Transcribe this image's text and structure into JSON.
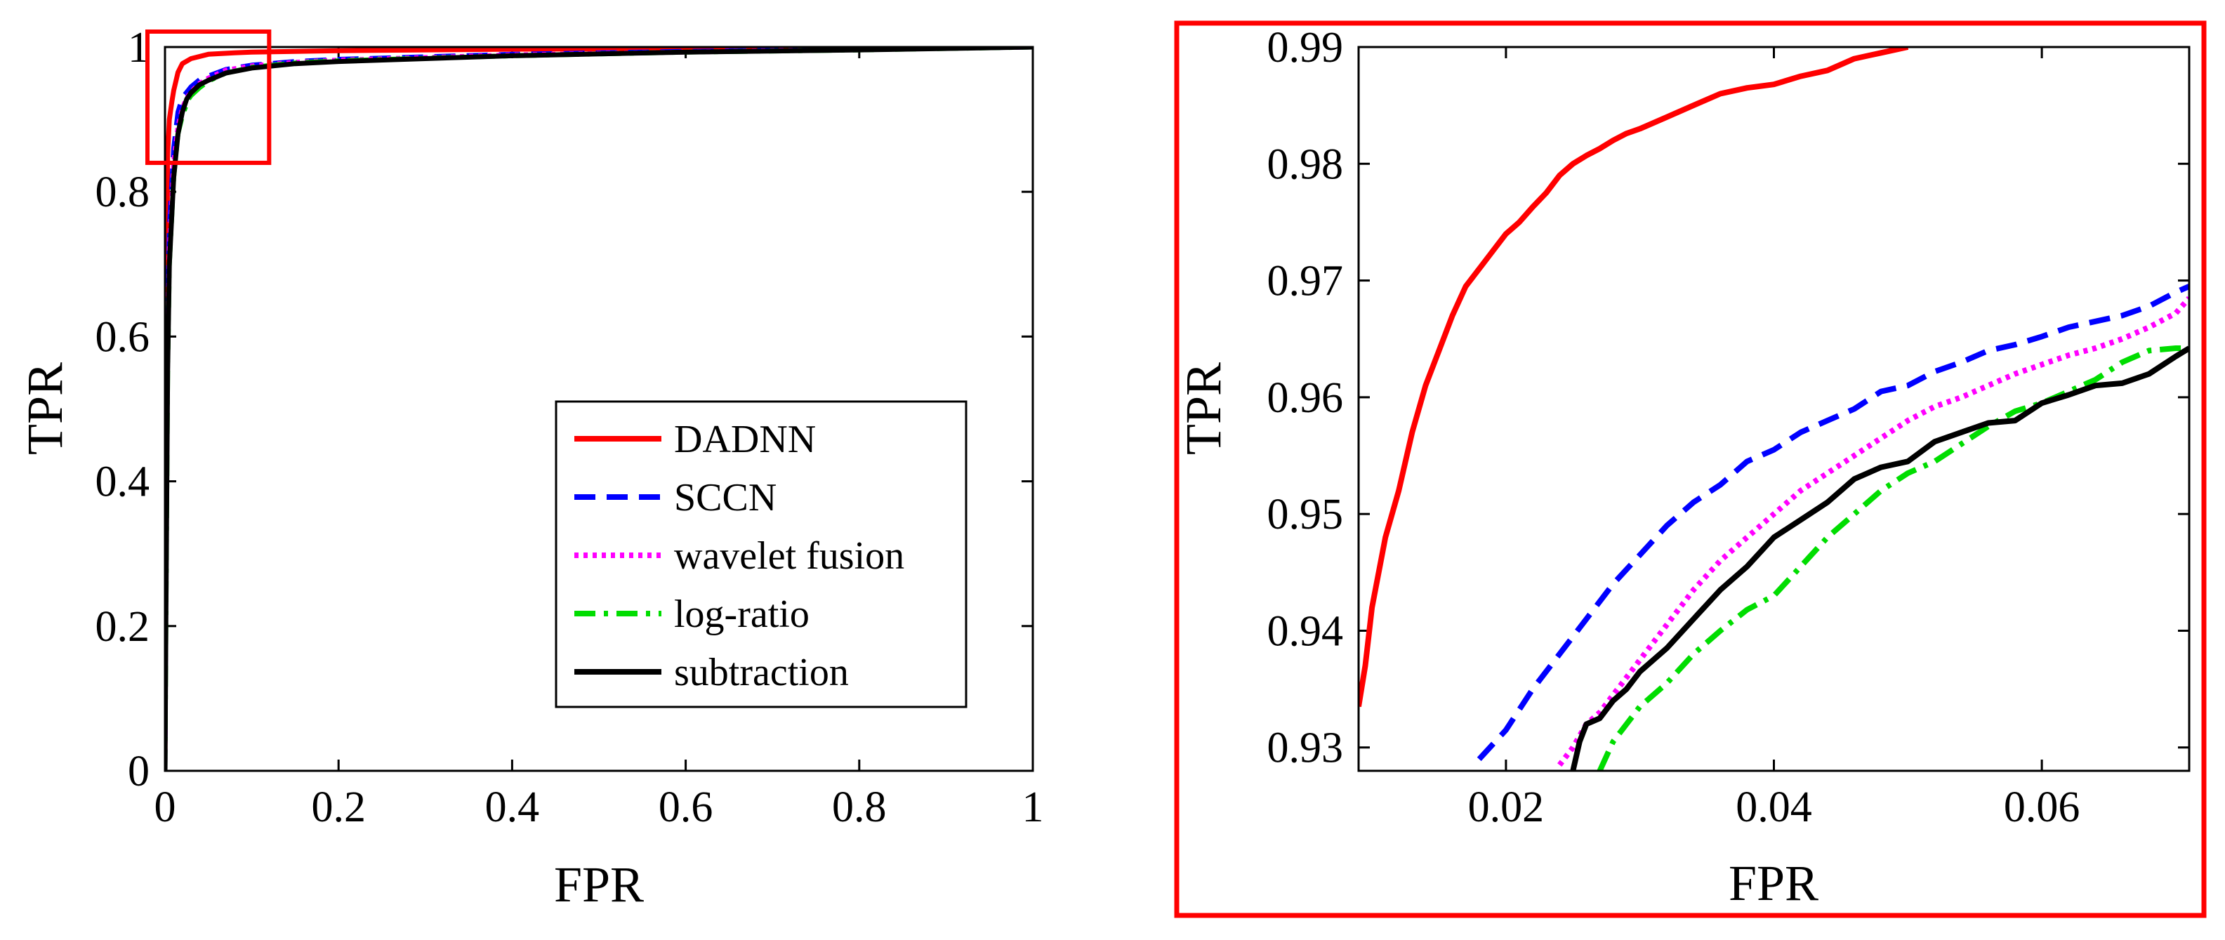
{
  "chart_data": [
    {
      "panel": "full-roc",
      "type": "line",
      "xlabel": "FPR",
      "ylabel": "TPR",
      "xlim": [
        0,
        1
      ],
      "ylim": [
        0,
        1
      ],
      "xticks": [
        0,
        0.2,
        0.4,
        0.6,
        0.8,
        1
      ],
      "xtick_labels": [
        "0",
        "0.2",
        "0.4",
        "0.6",
        "0.8",
        "1"
      ],
      "yticks": [
        0,
        0.2,
        0.4,
        0.6,
        0.8,
        1
      ],
      "ytick_labels": [
        "0",
        "0.2",
        "0.4",
        "0.6",
        "0.8",
        "1"
      ],
      "legend_position": "lower-right",
      "zoom_box": {
        "x_range": [
          0,
          0.12
        ],
        "y_range": [
          0.84,
          1.0
        ]
      },
      "series": [
        {
          "name": "DADNN",
          "color": "#ff0000",
          "dash": "solid",
          "x": [
            0,
            0.001,
            0.003,
            0.005,
            0.008,
            0.01,
            0.015,
            0.02,
            0.03,
            0.05,
            0.08,
            0.1,
            0.2,
            0.4,
            0.6,
            0.8,
            1
          ],
          "y": [
            0,
            0.4,
            0.85,
            0.9,
            0.925,
            0.94,
            0.965,
            0.977,
            0.984,
            0.99,
            0.992,
            0.993,
            0.995,
            0.997,
            0.998,
            0.999,
            1
          ]
        },
        {
          "name": "SCCN",
          "color": "#0000ff",
          "dash": "dashed",
          "x": [
            0,
            0.001,
            0.003,
            0.005,
            0.01,
            0.015,
            0.02,
            0.03,
            0.04,
            0.05,
            0.07,
            0.1,
            0.15,
            0.2,
            0.4,
            0.6,
            0.8,
            1
          ],
          "y": [
            0,
            0.3,
            0.62,
            0.75,
            0.86,
            0.91,
            0.93,
            0.945,
            0.955,
            0.96,
            0.969,
            0.975,
            0.98,
            0.983,
            0.99,
            0.994,
            0.997,
            1
          ]
        },
        {
          "name": "wavelet fusion",
          "color": "#ff00ff",
          "dash": "dotted",
          "x": [
            0,
            0.001,
            0.003,
            0.005,
            0.01,
            0.015,
            0.02,
            0.025,
            0.03,
            0.04,
            0.05,
            0.07,
            0.1,
            0.15,
            0.2,
            0.4,
            0.6,
            0.8,
            1
          ],
          "y": [
            0,
            0.25,
            0.58,
            0.72,
            0.84,
            0.89,
            0.915,
            0.93,
            0.938,
            0.95,
            0.957,
            0.968,
            0.974,
            0.979,
            0.982,
            0.989,
            0.993,
            0.997,
            1
          ]
        },
        {
          "name": "log-ratio",
          "color": "#00dd00",
          "dash": "dashdot",
          "x": [
            0,
            0.001,
            0.003,
            0.005,
            0.01,
            0.015,
            0.02,
            0.027,
            0.03,
            0.04,
            0.05,
            0.07,
            0.1,
            0.15,
            0.2,
            0.4,
            0.6,
            0.8,
            1
          ],
          "y": [
            0,
            0.2,
            0.55,
            0.7,
            0.82,
            0.88,
            0.905,
            0.928,
            0.933,
            0.944,
            0.953,
            0.964,
            0.972,
            0.978,
            0.981,
            0.988,
            0.993,
            0.996,
            1
          ]
        },
        {
          "name": "subtraction",
          "color": "#000000",
          "dash": "solid",
          "x": [
            0,
            0.001,
            0.003,
            0.005,
            0.01,
            0.015,
            0.02,
            0.025,
            0.03,
            0.04,
            0.05,
            0.07,
            0.1,
            0.15,
            0.2,
            0.4,
            0.6,
            0.8,
            1
          ],
          "y": [
            0,
            0.2,
            0.55,
            0.7,
            0.82,
            0.88,
            0.91,
            0.928,
            0.937,
            0.948,
            0.954,
            0.964,
            0.971,
            0.977,
            0.98,
            0.988,
            0.993,
            0.996,
            1
          ]
        }
      ]
    },
    {
      "panel": "zoomed-roc",
      "type": "line",
      "xlabel": "FPR",
      "ylabel": "TPR",
      "xlim": [
        0.009,
        0.071
      ],
      "ylim": [
        0.928,
        0.99
      ],
      "xticks": [
        0.02,
        0.04,
        0.06
      ],
      "xtick_labels": [
        "0.02",
        "0.04",
        "0.06"
      ],
      "yticks": [
        0.93,
        0.94,
        0.95,
        0.96,
        0.97,
        0.98,
        0.99
      ],
      "ytick_labels": [
        "0.93",
        "0.94",
        "0.95",
        "0.96",
        "0.97",
        "0.98",
        "0.99"
      ],
      "series": [
        {
          "name": "DADNN",
          "color": "#ff0000",
          "dash": "solid",
          "x": [
            0.009,
            0.0095,
            0.01,
            0.011,
            0.012,
            0.013,
            0.014,
            0.015,
            0.016,
            0.017,
            0.018,
            0.019,
            0.02,
            0.021,
            0.022,
            0.023,
            0.024,
            0.025,
            0.026,
            0.027,
            0.028,
            0.029,
            0.03,
            0.032,
            0.034,
            0.036,
            0.038,
            0.04,
            0.042,
            0.044,
            0.046,
            0.048,
            0.05
          ],
          "y": [
            0.9335,
            0.937,
            0.942,
            0.948,
            0.952,
            0.957,
            0.961,
            0.964,
            0.967,
            0.9695,
            0.971,
            0.9725,
            0.974,
            0.975,
            0.9763,
            0.9775,
            0.979,
            0.98,
            0.9807,
            0.9813,
            0.982,
            0.9826,
            0.983,
            0.984,
            0.985,
            0.986,
            0.9865,
            0.9868,
            0.9875,
            0.988,
            0.989,
            0.9895,
            0.99
          ]
        },
        {
          "name": "SCCN",
          "color": "#0000ff",
          "dash": "dashed",
          "x": [
            0.018,
            0.02,
            0.022,
            0.024,
            0.026,
            0.028,
            0.03,
            0.032,
            0.034,
            0.036,
            0.038,
            0.04,
            0.042,
            0.044,
            0.046,
            0.048,
            0.05,
            0.052,
            0.054,
            0.056,
            0.058,
            0.06,
            0.062,
            0.064,
            0.066,
            0.068,
            0.07,
            0.071
          ],
          "y": [
            0.929,
            0.9315,
            0.935,
            0.938,
            0.941,
            0.944,
            0.9465,
            0.949,
            0.951,
            0.9525,
            0.9545,
            0.9555,
            0.957,
            0.958,
            0.959,
            0.9605,
            0.961,
            0.9622,
            0.963,
            0.964,
            0.9645,
            0.9652,
            0.966,
            0.9665,
            0.967,
            0.9678,
            0.969,
            0.9695
          ]
        },
        {
          "name": "wavelet fusion",
          "color": "#ff00ff",
          "dash": "dotted",
          "x": [
            0.024,
            0.025,
            0.026,
            0.027,
            0.028,
            0.03,
            0.032,
            0.034,
            0.036,
            0.038,
            0.04,
            0.042,
            0.044,
            0.046,
            0.048,
            0.05,
            0.052,
            0.054,
            0.056,
            0.058,
            0.06,
            0.062,
            0.064,
            0.066,
            0.068,
            0.07,
            0.071
          ],
          "y": [
            0.9285,
            0.93,
            0.932,
            0.933,
            0.9345,
            0.9375,
            0.9405,
            0.9435,
            0.946,
            0.948,
            0.95,
            0.952,
            0.9535,
            0.955,
            0.9565,
            0.958,
            0.9592,
            0.96,
            0.961,
            0.962,
            0.9628,
            0.9636,
            0.9642,
            0.965,
            0.966,
            0.9672,
            0.9685
          ]
        },
        {
          "name": "log-ratio",
          "color": "#00dd00",
          "dash": "dashdot",
          "x": [
            0.027,
            0.028,
            0.029,
            0.03,
            0.032,
            0.034,
            0.036,
            0.038,
            0.04,
            0.042,
            0.044,
            0.046,
            0.048,
            0.05,
            0.052,
            0.054,
            0.056,
            0.058,
            0.06,
            0.062,
            0.064,
            0.066,
            0.068,
            0.07,
            0.071
          ],
          "y": [
            0.928,
            0.9305,
            0.932,
            0.9335,
            0.9355,
            0.938,
            0.94,
            0.9418,
            0.943,
            0.9455,
            0.948,
            0.95,
            0.952,
            0.9535,
            0.9545,
            0.956,
            0.9575,
            0.9588,
            0.9595,
            0.9605,
            0.9615,
            0.963,
            0.964,
            0.9642,
            0.9642
          ]
        },
        {
          "name": "subtraction",
          "color": "#000000",
          "dash": "solid",
          "x": [
            0.025,
            0.0255,
            0.026,
            0.027,
            0.028,
            0.029,
            0.03,
            0.032,
            0.034,
            0.036,
            0.038,
            0.04,
            0.042,
            0.044,
            0.046,
            0.048,
            0.05,
            0.052,
            0.054,
            0.056,
            0.058,
            0.06,
            0.062,
            0.064,
            0.066,
            0.068,
            0.07,
            0.071
          ],
          "y": [
            0.928,
            0.9305,
            0.932,
            0.9325,
            0.934,
            0.935,
            0.9365,
            0.9385,
            0.941,
            0.9435,
            0.9455,
            0.948,
            0.9495,
            0.951,
            0.953,
            0.954,
            0.9545,
            0.9562,
            0.957,
            0.9578,
            0.958,
            0.9595,
            0.9602,
            0.961,
            0.9612,
            0.962,
            0.9635,
            0.9642
          ]
        }
      ]
    }
  ]
}
